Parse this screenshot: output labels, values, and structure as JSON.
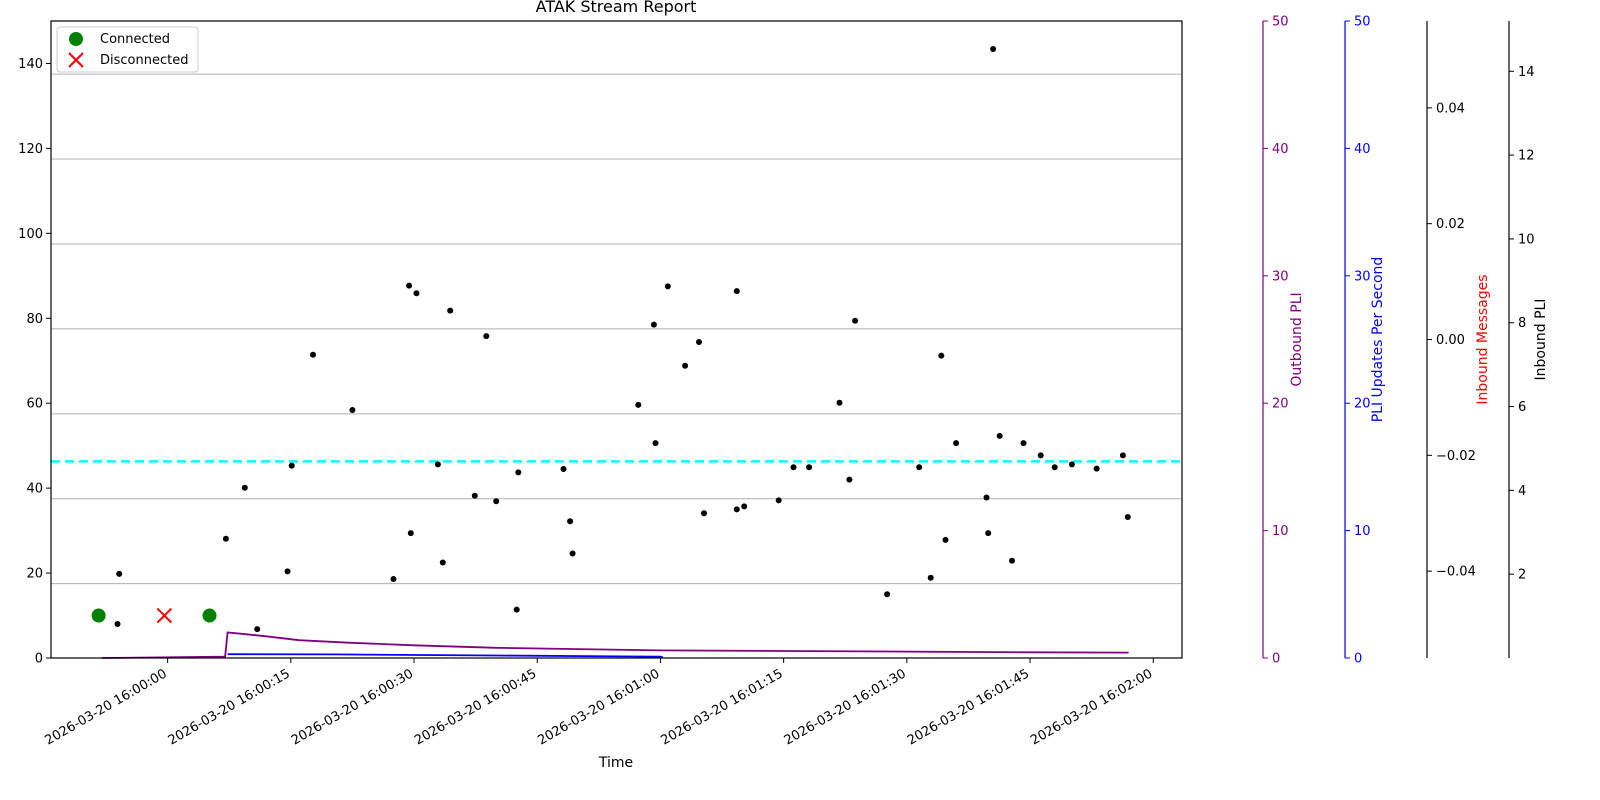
{
  "chart_data": {
    "type": "scatter",
    "title": "ATAK Stream Report",
    "xlabel": "Time",
    "x_tick_labels": [
      "2026-03-20 16:00:00",
      "2026-03-20 16:00:15",
      "2026-03-20 16:00:30",
      "2026-03-20 16:00:45",
      "2026-03-20 16:01:00",
      "2026-03-20 16:01:15",
      "2026-03-20 16:01:30",
      "2026-03-20 16:01:45",
      "2026-03-20 16:02:00"
    ],
    "xlim_seconds": [
      -14.2,
      123.5
    ],
    "y_main": {
      "label": "",
      "lim": [
        0,
        150
      ],
      "ticks": [
        0,
        20,
        40,
        60,
        80,
        100,
        120,
        140
      ]
    },
    "y_axes": [
      {
        "label": "Outbound PLI",
        "color": "#800080",
        "lim": [
          0,
          50
        ],
        "ticks": [
          0,
          10,
          20,
          30,
          40,
          50
        ]
      },
      {
        "label": "PLI Updates Per Second",
        "color": "#0000ff",
        "lim": [
          0,
          50
        ],
        "ticks": [
          0,
          10,
          20,
          30,
          40,
          50
        ]
      },
      {
        "label": "Inbound Messages",
        "color": "#ff0000",
        "lim": [
          -0.055,
          0.055
        ],
        "ticks": [
          -0.04,
          -0.02,
          0.0,
          0.02,
          0.04
        ],
        "tick_labels": [
          "−0.04",
          "−0.02",
          "0.00",
          "0.02",
          "0.04"
        ]
      },
      {
        "label": "Inbound PLI",
        "color": "#000000",
        "lim": [
          0,
          15.2
        ],
        "ticks": [
          2,
          4,
          6,
          8,
          10,
          12,
          14
        ]
      }
    ],
    "grid": "horizontal",
    "gridlines": [
      17.5,
      37.5,
      57.5,
      77.5,
      97.5,
      117.5,
      137.5
    ],
    "legend": {
      "placement": "top-left",
      "entries": [
        {
          "label": "Connected",
          "marker": "circle",
          "color": "#008000"
        },
        {
          "label": "Disconnected",
          "marker": "x",
          "color": "#ff0000"
        }
      ]
    },
    "reference_line": {
      "y": 46.3,
      "color": "#00ffff",
      "style": "dashed"
    },
    "connection_events": [
      {
        "state": "Connected",
        "t": -8.4,
        "y": 10
      },
      {
        "state": "Disconnected",
        "t": -0.4,
        "y": 10
      },
      {
        "state": "Connected",
        "t": 5.1,
        "y": 10
      }
    ],
    "series": [
      {
        "name": "Inbound PLI",
        "type": "scatter",
        "color": "#000000",
        "points": [
          [
            -8.0,
            9.5
          ],
          [
            -6.1,
            8.0
          ],
          [
            -5.9,
            19.8
          ],
          [
            7.1,
            28.1
          ],
          [
            9.4,
            40.1
          ],
          [
            10.9,
            6.8
          ],
          [
            14.6,
            20.4
          ],
          [
            15.1,
            45.3
          ],
          [
            17.7,
            71.4
          ],
          [
            22.5,
            58.4
          ],
          [
            27.5,
            18.6
          ],
          [
            29.4,
            87.7
          ],
          [
            29.6,
            29.4
          ],
          [
            30.3,
            85.9
          ],
          [
            32.9,
            45.6
          ],
          [
            33.5,
            22.5
          ],
          [
            34.4,
            81.8
          ],
          [
            37.4,
            38.2
          ],
          [
            38.8,
            75.8
          ],
          [
            40.0,
            36.9
          ],
          [
            42.5,
            11.4
          ],
          [
            42.7,
            43.7
          ],
          [
            48.2,
            44.5
          ],
          [
            49.0,
            32.2
          ],
          [
            49.3,
            24.6
          ],
          [
            57.3,
            59.6
          ],
          [
            59.2,
            78.5
          ],
          [
            59.4,
            50.6
          ],
          [
            60.9,
            87.5
          ],
          [
            63.0,
            68.8
          ],
          [
            64.7,
            74.4
          ],
          [
            65.3,
            34.1
          ],
          [
            69.3,
            35.0
          ],
          [
            69.3,
            86.4
          ],
          [
            70.2,
            35.7
          ],
          [
            74.4,
            37.1
          ],
          [
            76.2,
            44.9
          ],
          [
            78.1,
            44.9
          ],
          [
            81.8,
            60.1
          ],
          [
            83.0,
            42.0
          ],
          [
            83.7,
            79.4
          ],
          [
            87.6,
            15.0
          ],
          [
            91.5,
            44.9
          ],
          [
            92.9,
            18.9
          ],
          [
            94.2,
            71.2
          ],
          [
            94.7,
            27.8
          ],
          [
            96.0,
            50.6
          ],
          [
            99.7,
            37.8
          ],
          [
            99.9,
            29.4
          ],
          [
            100.5,
            143.4
          ],
          [
            101.3,
            52.3
          ],
          [
            102.8,
            22.9
          ],
          [
            104.2,
            50.6
          ],
          [
            106.3,
            47.7
          ],
          [
            108.0,
            44.9
          ],
          [
            110.1,
            45.6
          ],
          [
            113.1,
            44.6
          ],
          [
            116.3,
            47.7
          ],
          [
            116.9,
            33.2
          ]
        ]
      },
      {
        "name": "Outbound PLI",
        "type": "line",
        "color": "#800080",
        "axis": "Outbound PLI",
        "points": [
          [
            -8.0,
            0.0
          ],
          [
            7.0,
            0.1
          ],
          [
            7.3,
            2.0
          ],
          [
            9.0,
            1.9
          ],
          [
            12.0,
            1.7
          ],
          [
            16.0,
            1.4
          ],
          [
            22.0,
            1.2
          ],
          [
            30.0,
            1.0
          ],
          [
            40.0,
            0.8
          ],
          [
            50.0,
            0.7
          ],
          [
            60.0,
            0.6
          ],
          [
            75.0,
            0.55
          ],
          [
            90.0,
            0.5
          ],
          [
            105.0,
            0.45
          ],
          [
            117.0,
            0.42
          ]
        ]
      },
      {
        "name": "PLI Updates Per Second",
        "type": "line",
        "color": "#0000ff",
        "axis": "PLI Updates Per Second",
        "points": [
          [
            7.3,
            0.3
          ],
          [
            20.0,
            0.28
          ],
          [
            40.0,
            0.2
          ],
          [
            60.0,
            0.1
          ],
          [
            60.3,
            0.05
          ]
        ]
      }
    ]
  }
}
